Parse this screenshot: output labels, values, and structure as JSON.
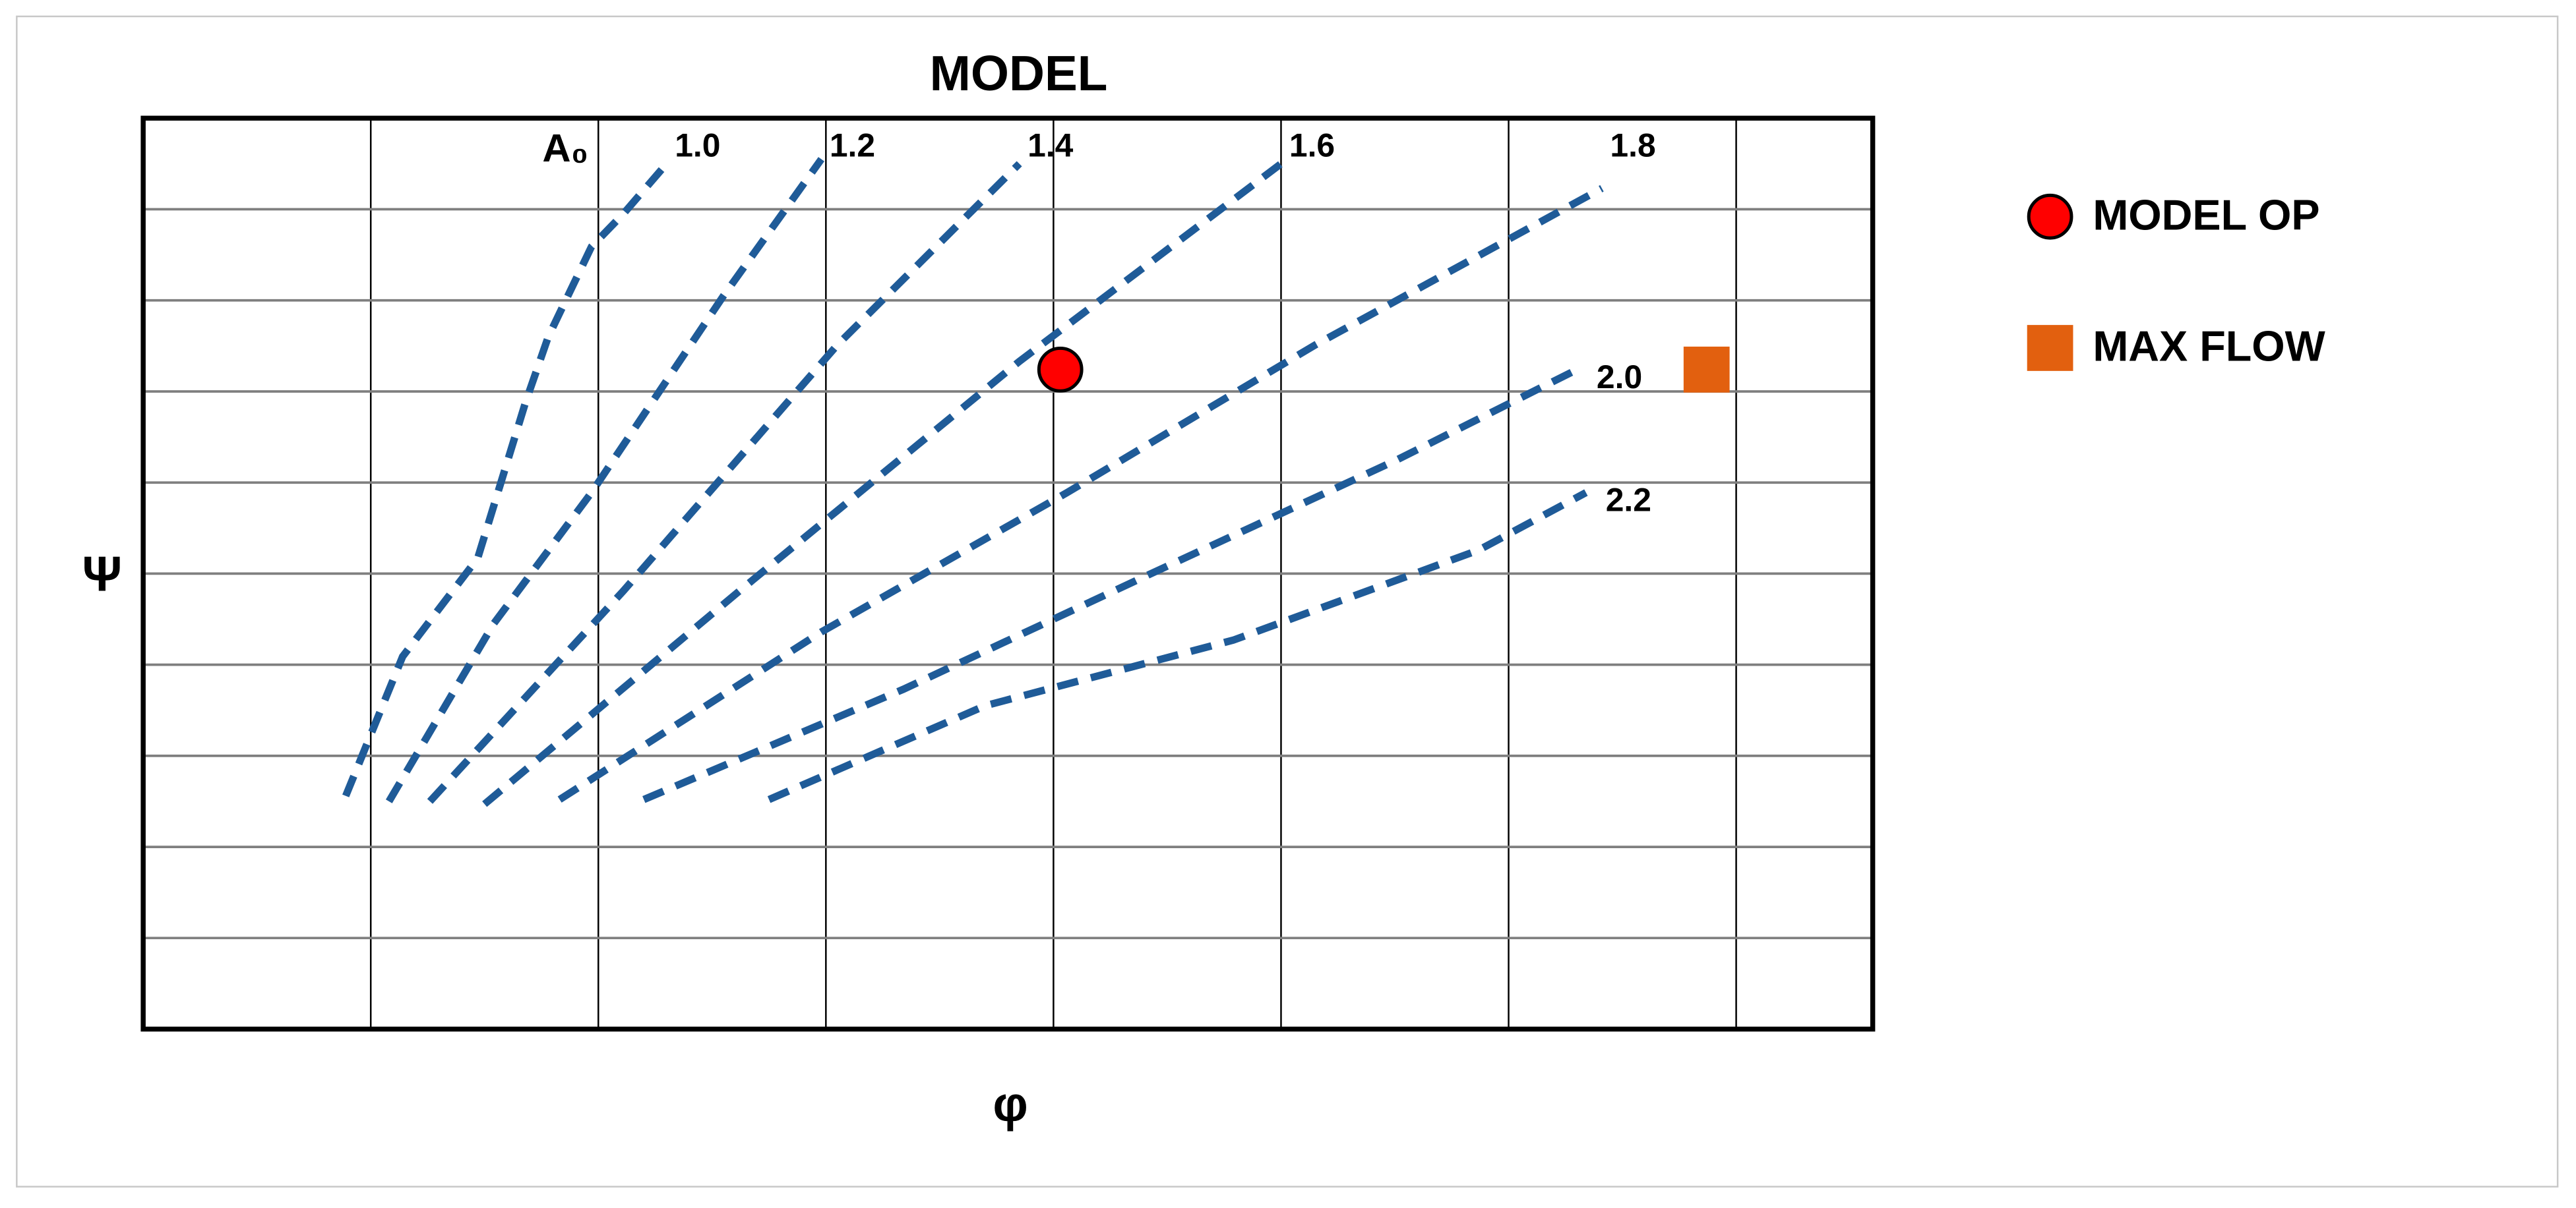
{
  "chart_data": {
    "type": "line",
    "title": "MODEL",
    "x_label": "φ",
    "y_label": "Ψ",
    "series_annotation": "A₀",
    "xlim": [
      0,
      7.6
    ],
    "ylim": [
      0,
      10
    ],
    "xticks": [
      1,
      2,
      3,
      4,
      5,
      6,
      7
    ],
    "yticks": [
      1,
      2,
      3,
      4,
      5,
      6,
      7,
      8,
      9
    ],
    "grid": true,
    "line_style": "dashed",
    "legend": "right",
    "series": [
      {
        "name": "1.0",
        "color": "#1f5b98",
        "x": [
          0.89,
          1.14,
          1.47,
          1.68,
          1.78,
          1.97,
          2.11,
          2.3
        ],
        "values": [
          2.56,
          4.09,
          5.17,
          6.88,
          7.6,
          8.59,
          8.95,
          9.5
        ]
      },
      {
        "name": "1.2",
        "color": "#1f5b98",
        "x": [
          1.08,
          1.54,
          1.97,
          2.55,
          2.98
        ],
        "values": [
          2.5,
          4.45,
          5.89,
          8.05,
          9.55
        ]
      },
      {
        "name": "1.4",
        "color": "#1f5b98",
        "x": [
          1.26,
          2.11,
          3.05,
          3.85
        ],
        "values": [
          2.5,
          4.81,
          7.51,
          9.5
        ]
      },
      {
        "name": "1.6",
        "color": "#1f5b98",
        "x": [
          1.5,
          2.62,
          3.85,
          5.0
        ],
        "values": [
          2.47,
          4.81,
          7.33,
          9.5
        ]
      },
      {
        "name": "1.8",
        "color": "#1f5b98",
        "x": [
          1.83,
          2.98,
          4.06,
          5.15,
          6.41
        ],
        "values": [
          2.52,
          4.36,
          5.89,
          7.51,
          9.23
        ]
      },
      {
        "name": "2.0",
        "color": "#1f5b98",
        "x": [
          2.2,
          3.34,
          4.42,
          5.51,
          6.3
        ],
        "values": [
          2.52,
          3.73,
          4.99,
          6.25,
          7.24
        ]
      },
      {
        "name": "2.2",
        "color": "#1f5b98",
        "x": [
          2.75,
          3.7,
          4.79,
          5.87,
          6.34
        ],
        "values": [
          2.52,
          3.55,
          4.27,
          5.26,
          5.89
        ]
      }
    ],
    "markers": [
      {
        "name": "MODEL OP",
        "color": "#ff0000",
        "marker": "circle",
        "x": [
          4.03
        ],
        "values": [
          7.24
        ]
      },
      {
        "name": "MAX FLOW",
        "color": "#e2600f",
        "marker": "square",
        "x": [
          6.87
        ],
        "values": [
          7.24
        ]
      }
    ]
  }
}
